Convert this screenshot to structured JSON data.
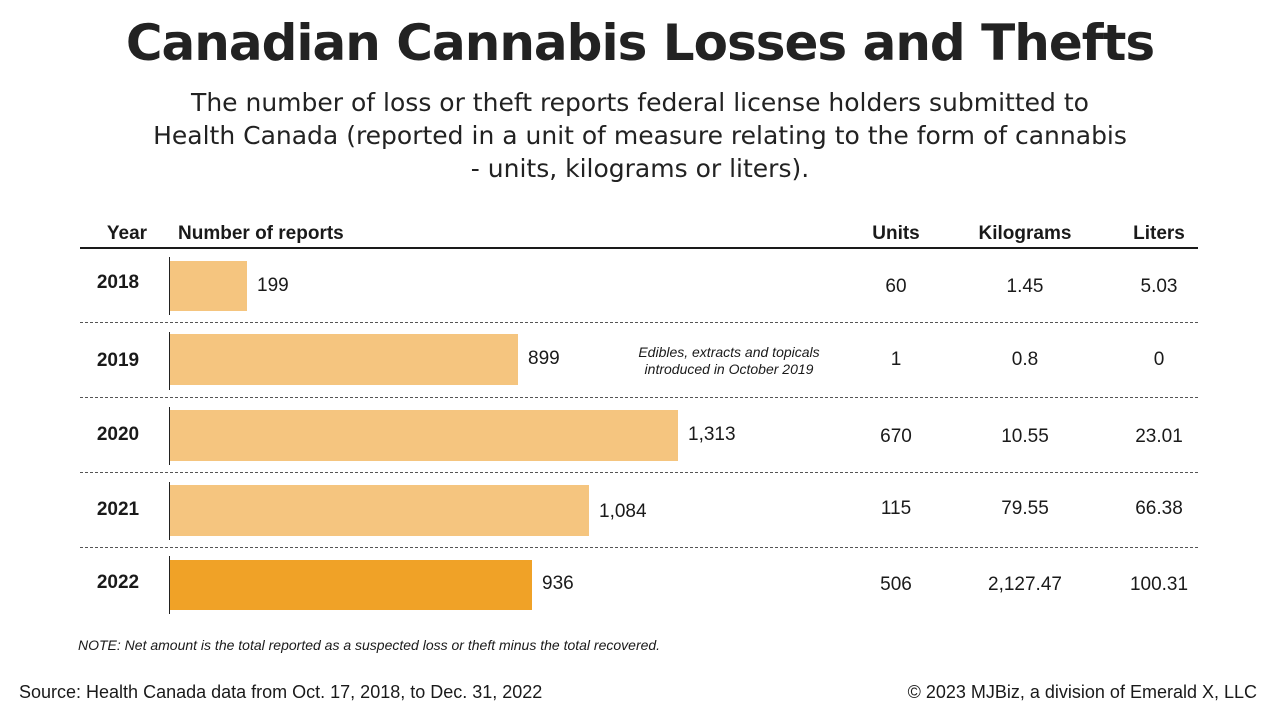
{
  "title": "Canadian Cannabis Losses and Thefts",
  "subtitle": "The number of loss or theft reports federal license holders submitted to Health Canada (reported in a unit of measure relating to the form of cannabis - units, kilograms or liters).",
  "headers": {
    "year": "Year",
    "reports": "Number of reports",
    "units": "Units",
    "kilograms": "Kilograms",
    "liters": "Liters"
  },
  "colors": {
    "bar": "#f5c57f",
    "bar_highlight": "#f0a227"
  },
  "rows": [
    {
      "year": "2018",
      "reports_label": "199",
      "units": "60",
      "kilograms": "1.45",
      "liters": "5.03"
    },
    {
      "year": "2019",
      "reports_label": "899",
      "units": "1",
      "kilograms": "0.8",
      "liters": "0"
    },
    {
      "year": "2020",
      "reports_label": "1,313",
      "units": "670",
      "kilograms": "10.55",
      "liters": "23.01"
    },
    {
      "year": "2021",
      "reports_label": "1,084",
      "units": "115",
      "kilograms": "79.55",
      "liters": "66.38"
    },
    {
      "year": "2022",
      "reports_label": "936",
      "units": "506",
      "kilograms": "2,127.47",
      "liters": "100.31"
    }
  ],
  "annotation": "Edibles, extracts and topicals introduced in October 2019",
  "note": "NOTE: Net amount is the total reported as a suspected loss or theft minus the total recovered.",
  "source": "Source: Health Canada data from Oct. 17, 2018, to Dec. 31, 2022",
  "copyright": "© 2023 MJBiz, a division of Emerald X, LLC",
  "chart_data": {
    "type": "bar",
    "orientation": "horizontal",
    "title": "Canadian Cannabis Losses and Thefts",
    "xlabel": "Number of reports",
    "ylabel": "Year",
    "categories": [
      "2018",
      "2019",
      "2020",
      "2021",
      "2022"
    ],
    "values": [
      199,
      899,
      1313,
      1084,
      936
    ],
    "highlight_category": "2022",
    "xlim": [
      0,
      1313
    ]
  }
}
